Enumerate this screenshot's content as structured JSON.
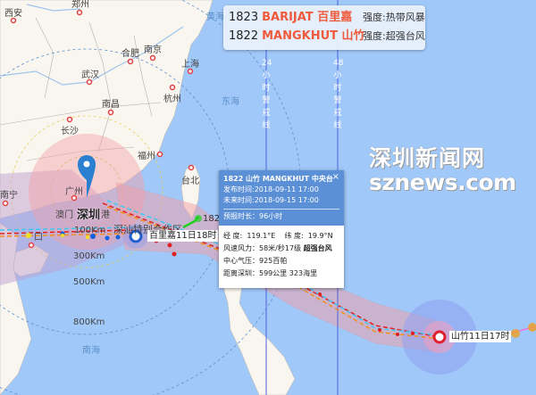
{
  "legend": {
    "storms": [
      {
        "number": "1823",
        "name": "BARIJAT 百里嘉",
        "intensity": "强度:热带风暴"
      },
      {
        "number": "1822",
        "name": "MANGKHUT 山竹",
        "intensity": "强度:超强台风"
      }
    ]
  },
  "popup": {
    "title": "1822 山竹 MANGKHUT 中央台",
    "issued": "发布时间:2018-09-11 17:00",
    "future": "未来时间:2018-09-15 17:00",
    "forecast_length": "预报时长：96小时",
    "coords": "经 度:  119.1°E    纬 度:  19.9°N",
    "wind_label": "风速风力：58米/秒17级 ",
    "wind_grade": "超强台风",
    "pressure": "中心气压：925百帕",
    "distance": "距离深圳：599公里 323海里",
    "close": "×"
  },
  "watermark": {
    "cn": "深圳新闻网",
    "en": "sznews.com"
  },
  "markers": {
    "barijat_tag": "百里嘉11日18时",
    "mangkhut_tag": "山竹11日17时",
    "barijat_number": "1823",
    "shenzhen": "深圳"
  },
  "warning_lines": {
    "h24": [
      "24",
      "小",
      "时",
      "警",
      "戒",
      "线"
    ],
    "h48": [
      "48",
      "小",
      "时",
      "警",
      "戒",
      "线"
    ]
  },
  "rings": [
    "100Km",
    "300Km",
    "500Km",
    "800Km"
  ],
  "places": {
    "xian": "西安",
    "zhengzhou": "郑州",
    "hefei": "合肥",
    "nanjing": "南京",
    "shanghai": "上海",
    "wuhan": "武汉",
    "hangzhou": "杭州",
    "nanchang": "南昌",
    "changsha": "长沙",
    "fuzhou": "福州",
    "nanning": "南宁",
    "guangzhou": "广州",
    "macau": "澳门",
    "hongkong": "港",
    "haikou": "口",
    "taipei": "台北",
    "shantou": "深汕特别合作区",
    "yellow_sea": "黄海",
    "east_sea": "东海",
    "south_sea": "南海"
  },
  "colors": {
    "sea": "#a0c8f8",
    "land": "#f8f6ee",
    "accent": "#5b8fd6",
    "storm_name": "#f05a3c",
    "cone": "#f4a0a8"
  }
}
